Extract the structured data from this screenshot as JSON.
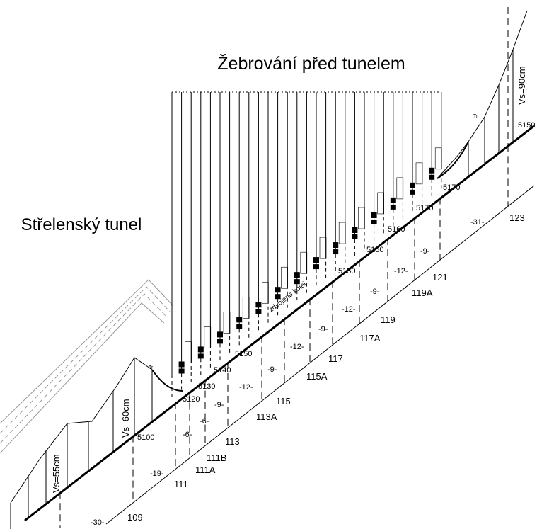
{
  "title": "Žebrování před tunelem",
  "tunnel_label": "Střelenský tunel",
  "heights": [
    "Vs=90cm",
    "Vs=60cm",
    "Vs=55cm"
  ],
  "track_label": "zdvojená kolej",
  "stations": [
    "109",
    "111",
    "111A",
    "111B",
    "113",
    "113A",
    "115",
    "115A",
    "117",
    "117A",
    "119",
    "119A",
    "121",
    "123"
  ],
  "spacings": [
    "-30-",
    "-19-",
    "-6-",
    "-6-",
    "-9-",
    "-12-",
    "-9-",
    "-12-",
    "-9-",
    "-12-",
    "-9-",
    "-12-",
    "-9-",
    "-31-"
  ],
  "elevations": [
    "5100",
    "5120",
    "5130",
    "5140",
    "5150",
    "5150",
    "5160",
    "5160",
    "5170",
    "5170",
    "5150"
  ],
  "markers": [
    "Tr",
    "Tr"
  ]
}
